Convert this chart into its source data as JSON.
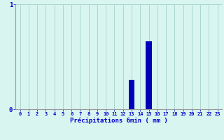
{
  "hours": [
    0,
    1,
    2,
    3,
    4,
    5,
    6,
    7,
    8,
    9,
    10,
    11,
    12,
    13,
    14,
    15,
    16,
    17,
    18,
    19,
    20,
    21,
    22,
    23
  ],
  "values": [
    0,
    0,
    0,
    0,
    0,
    0,
    0,
    0,
    0,
    0,
    0,
    0,
    0,
    0.28,
    0,
    0.65,
    0,
    0,
    0,
    0,
    0,
    0,
    0,
    0
  ],
  "bar_color": "#0000bb",
  "background_color": "#d8f5f0",
  "grid_color": "#aad8d0",
  "axis_color": "#999999",
  "text_color": "#0000cc",
  "xlabel": "Précipitations 6min ( mm )",
  "ylim": [
    0,
    1.0
  ],
  "yticks": [
    0,
    1
  ],
  "ytick_labels": [
    "0",
    "1"
  ],
  "bar_width": 0.7
}
